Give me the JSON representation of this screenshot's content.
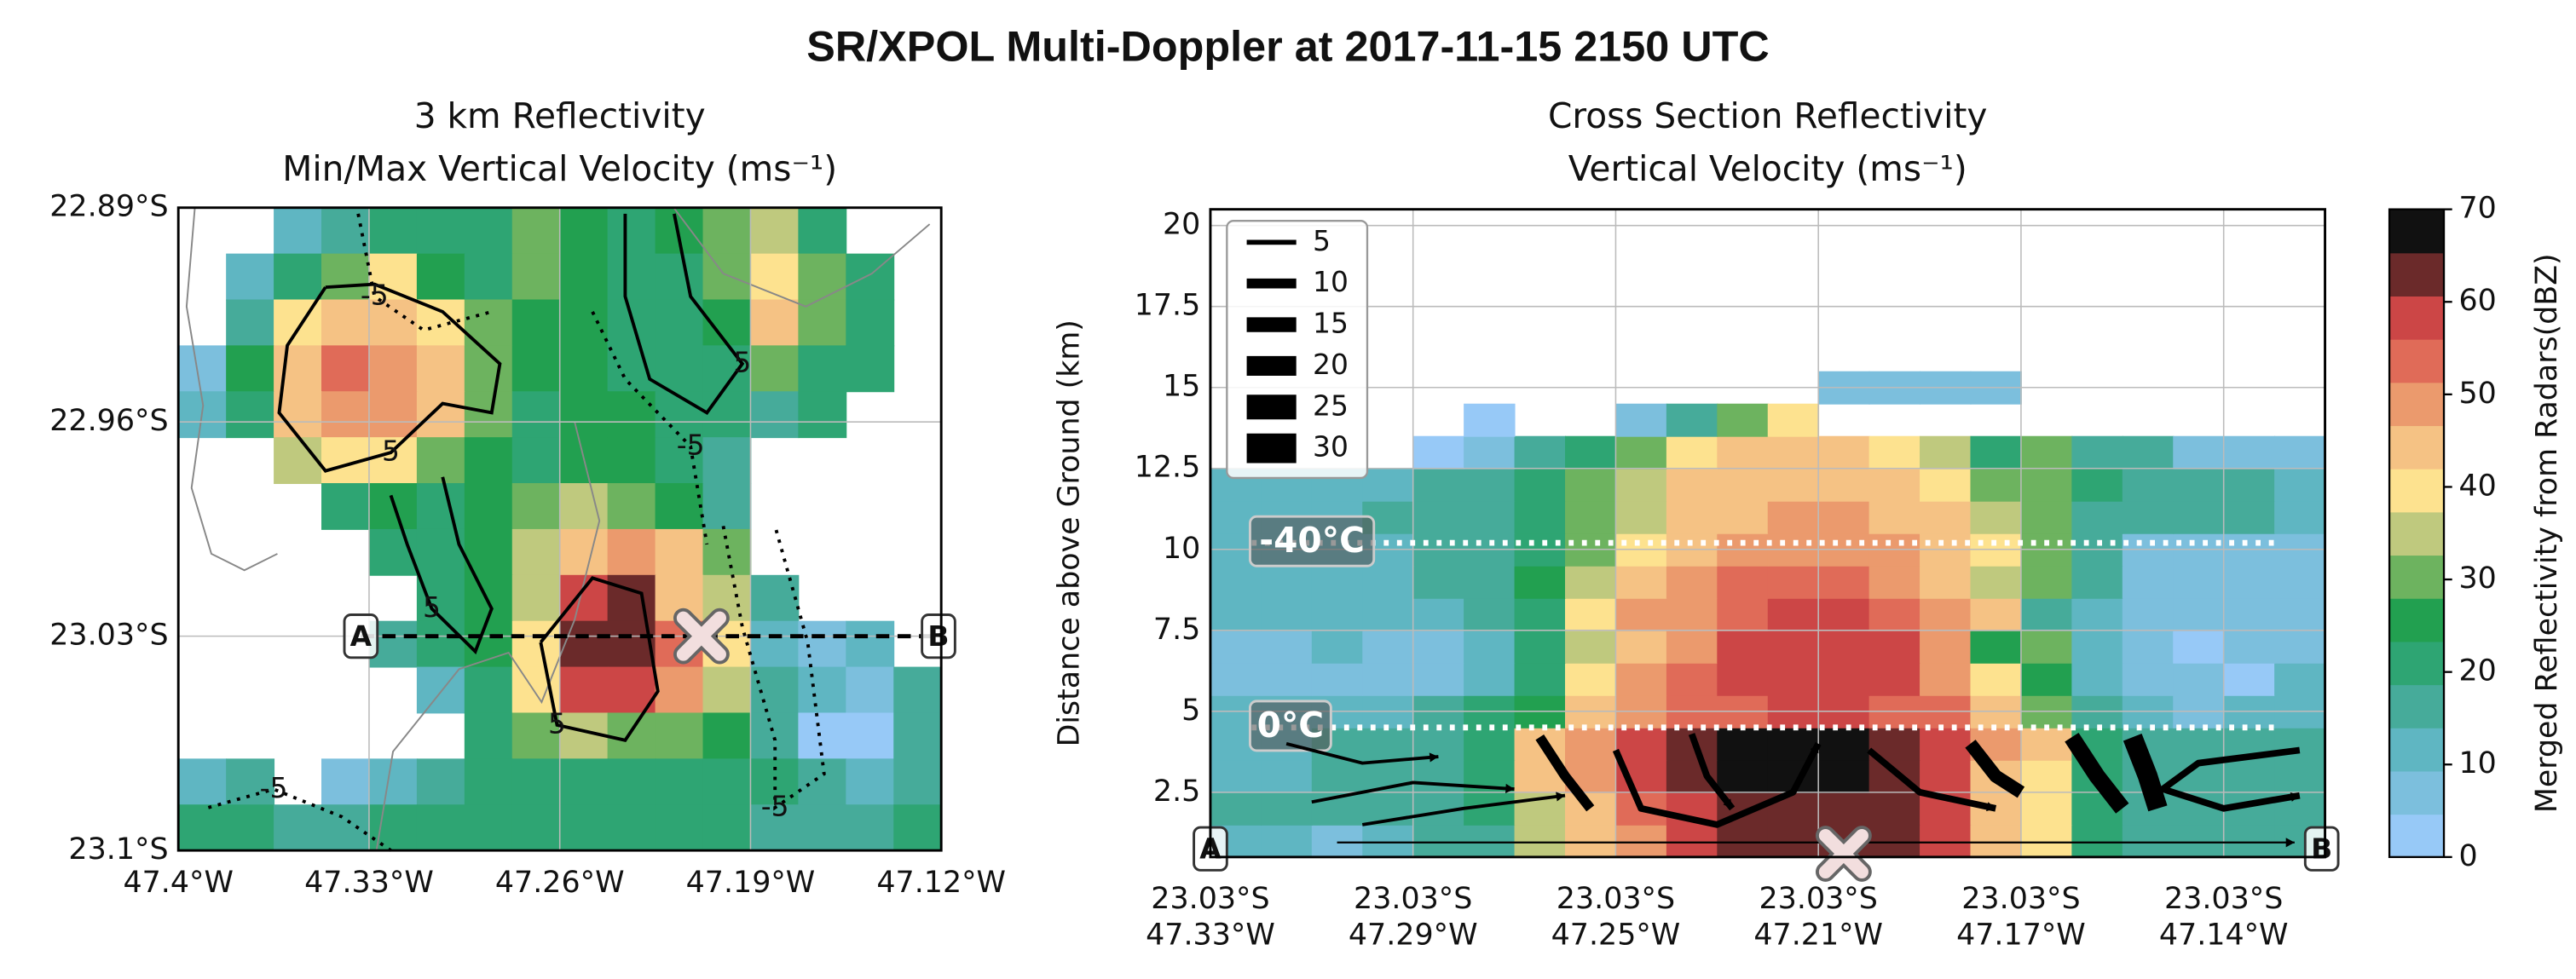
{
  "title": "SR/XPOL Multi-Doppler at 2017-11-15 2150 UTC",
  "colorbar": {
    "label": "Merged Reflectivity from Radars(dBZ)",
    "lim": [
      0,
      70
    ],
    "ticks": [
      0,
      10,
      20,
      30,
      40,
      50,
      60,
      70
    ],
    "colors": [
      "#97c9f7",
      "#7cbfdd",
      "#5fb6c2",
      "#46ab9a",
      "#2ea573",
      "#22a050",
      "#6db35f",
      "#bfc97e",
      "#fde28f",
      "#f5c284",
      "#eb9a6d",
      "#e06b58",
      "#cc4646",
      "#6b2a2a",
      "#111111"
    ]
  },
  "chart_data": [
    {
      "type": "map-heatmap",
      "title": [
        "3 km Reflectivity",
        "Min/Max Vertical Velocity (ms⁻¹)"
      ],
      "xlim": [
        -47.4,
        -47.12
      ],
      "ylim": [
        -22.89,
        -23.1
      ],
      "xticks": [
        {
          "value": -47.4,
          "label": "47.4°W"
        },
        {
          "value": -47.33,
          "label": "47.33°W"
        },
        {
          "value": -47.26,
          "label": "47.26°W"
        },
        {
          "value": -47.19,
          "label": "47.19°W"
        },
        {
          "value": -47.12,
          "label": "47.12°W"
        }
      ],
      "yticks": [
        {
          "value": -22.89,
          "label": "22.89°S"
        },
        {
          "value": -22.96,
          "label": "22.96°S"
        },
        {
          "value": -23.03,
          "label": "23.03°S"
        },
        {
          "value": -23.1,
          "label": "23.1°S"
        }
      ],
      "grid": true,
      "values": [
        [
          null,
          null,
          10,
          18,
          20,
          22,
          22,
          30,
          24,
          22,
          24,
          30,
          36,
          22,
          null,
          null
        ],
        [
          null,
          12,
          22,
          32,
          38,
          24,
          22,
          30,
          26,
          20,
          22,
          30,
          38,
          30,
          20,
          null
        ],
        [
          null,
          18,
          38,
          44,
          42,
          38,
          28,
          24,
          26,
          20,
          20,
          26,
          42,
          30,
          22,
          null
        ],
        [
          8,
          26,
          46,
          52,
          50,
          42,
          30,
          24,
          24,
          22,
          20,
          22,
          30,
          22,
          22,
          null
        ],
        [
          10,
          22,
          44,
          50,
          50,
          42,
          28,
          22,
          24,
          24,
          22,
          20,
          18,
          20,
          null,
          null
        ],
        [
          null,
          null,
          36,
          40,
          38,
          30,
          24,
          22,
          26,
          24,
          22,
          14,
          null,
          null,
          null,
          null
        ],
        [
          null,
          null,
          null,
          22,
          24,
          22,
          24,
          30,
          36,
          30,
          24,
          14,
          null,
          null,
          null,
          null
        ],
        [
          null,
          null,
          null,
          null,
          20,
          22,
          24,
          34,
          46,
          48,
          44,
          30,
          null,
          null,
          null,
          null
        ],
        [
          null,
          null,
          null,
          null,
          null,
          20,
          24,
          36,
          56,
          62,
          46,
          36,
          14,
          null,
          null,
          null
        ],
        [
          null,
          null,
          null,
          null,
          18,
          20,
          24,
          40,
          62,
          64,
          52,
          40,
          12,
          8,
          10,
          null
        ],
        [
          null,
          null,
          null,
          null,
          null,
          12,
          20,
          38,
          56,
          58,
          48,
          34,
          16,
          12,
          8,
          16
        ],
        [
          null,
          null,
          null,
          null,
          null,
          null,
          20,
          30,
          34,
          30,
          28,
          24,
          14,
          4,
          4,
          16
        ],
        [
          12,
          14,
          null,
          8,
          10,
          16,
          20,
          22,
          22,
          20,
          22,
          22,
          20,
          14,
          12,
          16
        ],
        [
          22,
          22,
          18,
          16,
          20,
          22,
          22,
          20,
          22,
          20,
          22,
          20,
          18,
          16,
          14,
          20
        ]
      ],
      "contours": [
        {
          "level": 5,
          "label_at": 4,
          "lon": [
            -47.346,
            -47.36,
            -47.363,
            -47.346,
            -47.322,
            -47.303,
            -47.285,
            -47.282,
            -47.303,
            -47.328,
            -47.346
          ],
          "lat": [
            -22.916,
            -22.935,
            -22.957,
            -22.976,
            -22.97,
            -22.954,
            -22.957,
            -22.941,
            -22.924,
            -22.915,
            -22.916
          ]
        },
        {
          "level": 5,
          "label_at": 2,
          "lon": [
            -47.322,
            -47.316,
            -47.307,
            -47.291,
            -47.285,
            -47.297,
            -47.303
          ],
          "lat": [
            -22.984,
            -23.0,
            -23.021,
            -23.035,
            -23.021,
            -23.0,
            -22.978
          ]
        },
        {
          "level": 5,
          "label_at": 1,
          "lon": [
            -47.267,
            -47.261,
            -47.236,
            -47.224,
            -47.23,
            -47.248,
            -47.267
          ],
          "lat": [
            -23.032,
            -23.059,
            -23.064,
            -23.048,
            -23.016,
            -23.011,
            -23.032
          ]
        },
        {
          "level": -5,
          "label_at": 3,
          "lon": [
            -47.2,
            -47.193,
            -47.181,
            -47.181,
            -47.163,
            -47.169,
            -47.181
          ],
          "lat": [
            -22.994,
            -23.027,
            -23.064,
            -23.086,
            -23.075,
            -23.032,
            -22.994
          ]
        },
        {
          "level": 5,
          "label_at": 4,
          "lon": [
            -47.236,
            -47.236,
            -47.227,
            -47.206,
            -47.193,
            -47.212,
            -47.218
          ],
          "lat": [
            -22.892,
            -22.919,
            -22.946,
            -22.957,
            -22.941,
            -22.919,
            -22.892
          ]
        },
        {
          "level": -5,
          "label_at": 1,
          "lon": [
            -47.389,
            -47.365,
            -47.34,
            -47.322
          ],
          "lat": [
            -23.086,
            -23.08,
            -23.089,
            -23.1
          ]
        },
        {
          "level": -5,
          "label_at": 1,
          "lon": [
            -47.334,
            -47.328,
            -47.31,
            -47.285
          ],
          "lat": [
            -22.892,
            -22.919,
            -22.93,
            -22.924
          ]
        },
        {
          "level": -5,
          "label_at": 2,
          "lon": [
            -47.248,
            -47.236,
            -47.212,
            -47.206
          ],
          "lat": [
            -22.924,
            -22.946,
            -22.968,
            -23.0
          ]
        }
      ],
      "section": {
        "lon": [
          -47.333,
          -47.121
        ],
        "lat": [
          -23.03,
          -23.03
        ],
        "labels": [
          "A",
          "B"
        ],
        "marker": [
          -47.208,
          -23.03
        ]
      }
    },
    {
      "type": "cross-section",
      "title": [
        "Cross Section Reflectivity",
        "Vertical Velocity (ms⁻¹)"
      ],
      "ylabel": "Distance above Ground (km)",
      "xlim": [
        0,
        22
      ],
      "ylim": [
        0.5,
        20.5
      ],
      "xticks": [
        {
          "value": 0,
          "label": [
            "23.03°S",
            "47.33°W"
          ]
        },
        {
          "value": 4,
          "label": [
            "23.03°S",
            "47.29°W"
          ]
        },
        {
          "value": 8,
          "label": [
            "23.03°S",
            "47.25°W"
          ]
        },
        {
          "value": 12,
          "label": [
            "23.03°S",
            "47.21°W"
          ]
        },
        {
          "value": 16,
          "label": [
            "23.03°S",
            "47.17°W"
          ]
        },
        {
          "value": 20,
          "label": [
            "23.03°S",
            "47.14°W"
          ]
        }
      ],
      "yticks": [
        2.5,
        5.0,
        7.5,
        10.0,
        12.5,
        15.0,
        17.5,
        20.0
      ],
      "grid": true,
      "z_bins": [
        0.5,
        1.5,
        2.5,
        3.5,
        4.5,
        5.5,
        6.5,
        7.5,
        8.5,
        9.5,
        10.5,
        11.5,
        12.5,
        13.5,
        14.5,
        15.5
      ],
      "values": [
        [
          12,
          12,
          8,
          10,
          14,
          18,
          33,
          42,
          50,
          58,
          62,
          62,
          62,
          62,
          58,
          45,
          40,
          22,
          18,
          15,
          14,
          14
        ],
        [
          14,
          14,
          14,
          14,
          14,
          20,
          36,
          45,
          52,
          60,
          62,
          64,
          64,
          62,
          58,
          45,
          38,
          20,
          16,
          15,
          14,
          14
        ],
        [
          12,
          12,
          14,
          14,
          14,
          22,
          44,
          50,
          58,
          62,
          66,
          67,
          67,
          64,
          58,
          46,
          40,
          22,
          16,
          14,
          14,
          14
        ],
        [
          10,
          12,
          14,
          14,
          16,
          22,
          44,
          50,
          57,
          62,
          66,
          67,
          67,
          64,
          60,
          48,
          42,
          22,
          16,
          14,
          14,
          14
        ],
        [
          10,
          12,
          12,
          10,
          14,
          20,
          24,
          42,
          47,
          52,
          55,
          57,
          57,
          55,
          52,
          45,
          28,
          14,
          12,
          8,
          12,
          12
        ],
        [
          7,
          7,
          7,
          6,
          7,
          12,
          22,
          38,
          47,
          52,
          56,
          57,
          57,
          56,
          50,
          40,
          24,
          12,
          7,
          7,
          3,
          12
        ],
        [
          7,
          7,
          10,
          7,
          7,
          12,
          22,
          36,
          45,
          50,
          56,
          57,
          57,
          56,
          48,
          24,
          30,
          12,
          7,
          3,
          7,
          7
        ],
        [
          12,
          12,
          12,
          12,
          12,
          14,
          22,
          40,
          48,
          50,
          53,
          56,
          56,
          53,
          50,
          42,
          14,
          12,
          7,
          7,
          7,
          7
        ],
        [
          12,
          12,
          12,
          12,
          14,
          16,
          24,
          34,
          42,
          48,
          52,
          52,
          52,
          50,
          44,
          34,
          28,
          14,
          7,
          7,
          7,
          7
        ],
        [
          12,
          12,
          12,
          12,
          14,
          16,
          22,
          30,
          40,
          46,
          50,
          50,
          50,
          50,
          46,
          38,
          30,
          14,
          7,
          7,
          7,
          7
        ],
        [
          12,
          12,
          12,
          14,
          14,
          16,
          20,
          28,
          36,
          42,
          46,
          47,
          47,
          46,
          42,
          36,
          28,
          18,
          14,
          14,
          14,
          12
        ],
        [
          12,
          12,
          12,
          12,
          14,
          16,
          20,
          28,
          36,
          42,
          44,
          45,
          45,
          42,
          38,
          32,
          28,
          22,
          14,
          14,
          14,
          12
        ],
        [
          null,
          null,
          null,
          null,
          3,
          7,
          14,
          20,
          30,
          40,
          42,
          42,
          42,
          40,
          36,
          22,
          30,
          16,
          14,
          8,
          8,
          8
        ],
        [
          null,
          null,
          null,
          null,
          null,
          3,
          null,
          null,
          8,
          14,
          30,
          38,
          null,
          null,
          null,
          null,
          null,
          null,
          null,
          null,
          null,
          null
        ],
        [
          null,
          null,
          null,
          null,
          null,
          null,
          null,
          null,
          null,
          null,
          null,
          null,
          8,
          8,
          8,
          8,
          null,
          null,
          null,
          null,
          null,
          null
        ]
      ],
      "isotherms": [
        {
          "label": "-40°C",
          "z": 10.2
        },
        {
          "label": "0°C",
          "z": 4.5
        }
      ],
      "legend": {
        "widths": [
          5,
          10,
          15,
          20,
          25,
          30
        ]
      },
      "streamlines": [
        {
          "x": [
            2.5,
            21.4
          ],
          "z": [
            0.95,
            0.95
          ],
          "speed": 3
        },
        {
          "x": [
            1.5,
            3,
            4.5
          ],
          "z": [
            4.0,
            3.4,
            3.6
          ],
          "speed": 5
        },
        {
          "x": [
            2,
            4,
            6
          ],
          "z": [
            2.2,
            2.8,
            2.6
          ],
          "speed": 5
        },
        {
          "x": [
            3,
            5,
            7
          ],
          "z": [
            1.5,
            2.0,
            2.4
          ],
          "speed": 5
        },
        {
          "x": [
            6.5,
            7,
            7.5
          ],
          "z": [
            4.2,
            3.0,
            2.0
          ],
          "speed": 15
        },
        {
          "x": [
            8,
            8.5,
            10,
            11.5,
            12
          ],
          "z": [
            3.8,
            2.0,
            1.5,
            2.5,
            4.0
          ],
          "speed": 10
        },
        {
          "x": [
            9.5,
            9.8,
            10.3
          ],
          "z": [
            4.3,
            3.0,
            2.0
          ],
          "speed": 10
        },
        {
          "x": [
            13,
            14,
            15.5
          ],
          "z": [
            3.8,
            2.5,
            2.0
          ],
          "speed": 10
        },
        {
          "x": [
            15,
            15.5,
            16
          ],
          "z": [
            4.0,
            3.0,
            2.5
          ],
          "speed": 20
        },
        {
          "x": [
            17,
            17.5,
            18
          ],
          "z": [
            4.2,
            3.0,
            2.0
          ],
          "speed": 25
        },
        {
          "x": [
            18.2,
            18.5,
            18.7
          ],
          "z": [
            4.2,
            3.0,
            2.0
          ],
          "speed": 30
        },
        {
          "x": [
            21.5,
            19.5,
            18.8,
            20,
            21.5
          ],
          "z": [
            3.8,
            3.4,
            2.6,
            2.0,
            2.4
          ],
          "speed": 10
        }
      ],
      "section": {
        "labels": [
          "A",
          "B"
        ],
        "x": [
          0,
          22
        ],
        "marker": 12.5
      }
    }
  ]
}
